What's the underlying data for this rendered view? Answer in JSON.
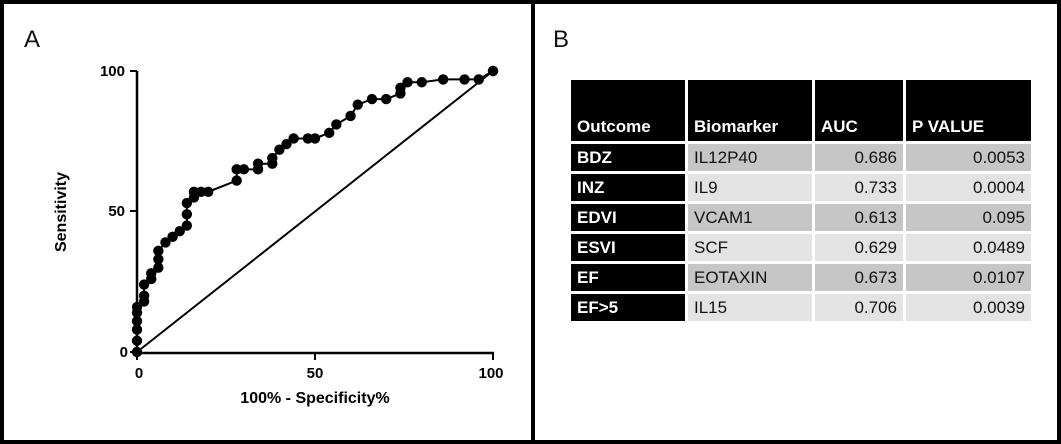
{
  "panels": {
    "a_label": "A",
    "b_label": "B"
  },
  "chart_data": {
    "type": "line",
    "xlabel": "100% - Specificity%",
    "ylabel": "Sensitivity",
    "xlim": [
      0,
      100
    ],
    "ylim": [
      0,
      100
    ],
    "x_ticks": [
      "0",
      "50",
      "100"
    ],
    "y_ticks": [
      "0",
      "50",
      "100"
    ],
    "grid": false,
    "series": [
      {
        "x": [
          0,
          0,
          0,
          0,
          0,
          0,
          2,
          2,
          2,
          4,
          4,
          6,
          6,
          6,
          8,
          10,
          12,
          14,
          14,
          14,
          16,
          16,
          18,
          20,
          28,
          28,
          30,
          34,
          34,
          38,
          38,
          40,
          42,
          44,
          48,
          50,
          54,
          56,
          60,
          62,
          66,
          70,
          74,
          74,
          76,
          80,
          86,
          92,
          96,
          100,
          100
        ],
        "y": [
          0,
          4,
          8,
          11,
          14,
          16,
          18,
          20,
          24,
          26,
          28,
          30,
          33,
          36,
          39,
          41,
          43,
          45,
          49,
          53,
          55,
          57,
          57,
          57,
          61,
          65,
          65,
          65,
          67,
          67,
          69,
          72,
          74,
          76,
          76,
          76,
          78,
          81,
          84,
          88,
          90,
          90,
          92,
          94,
          96,
          96,
          97,
          97,
          97,
          100,
          100
        ]
      },
      {
        "x": [
          0,
          100
        ],
        "y": [
          0,
          100
        ]
      }
    ]
  },
  "table": {
    "headers": [
      "Outcome",
      "Biomarker",
      "AUC",
      "P VALUE"
    ],
    "rows": [
      {
        "outcome": "BDZ",
        "biomarker": "IL12P40",
        "auc": "0.686",
        "p": "0.0053"
      },
      {
        "outcome": "INZ",
        "biomarker": "IL9",
        "auc": "0.733",
        "p": "0.0004"
      },
      {
        "outcome": "EDVI",
        "biomarker": "VCAM1",
        "auc": "0.613",
        "p": "0.095"
      },
      {
        "outcome": "ESVI",
        "biomarker": "SCF",
        "auc": "0.629",
        "p": "0.0489"
      },
      {
        "outcome": "EF",
        "biomarker": "EOTAXIN",
        "auc": "0.673",
        "p": "0.0107"
      },
      {
        "outcome": "EF>5",
        "biomarker": "IL15",
        "auc": "0.706",
        "p": "0.0039"
      }
    ]
  }
}
